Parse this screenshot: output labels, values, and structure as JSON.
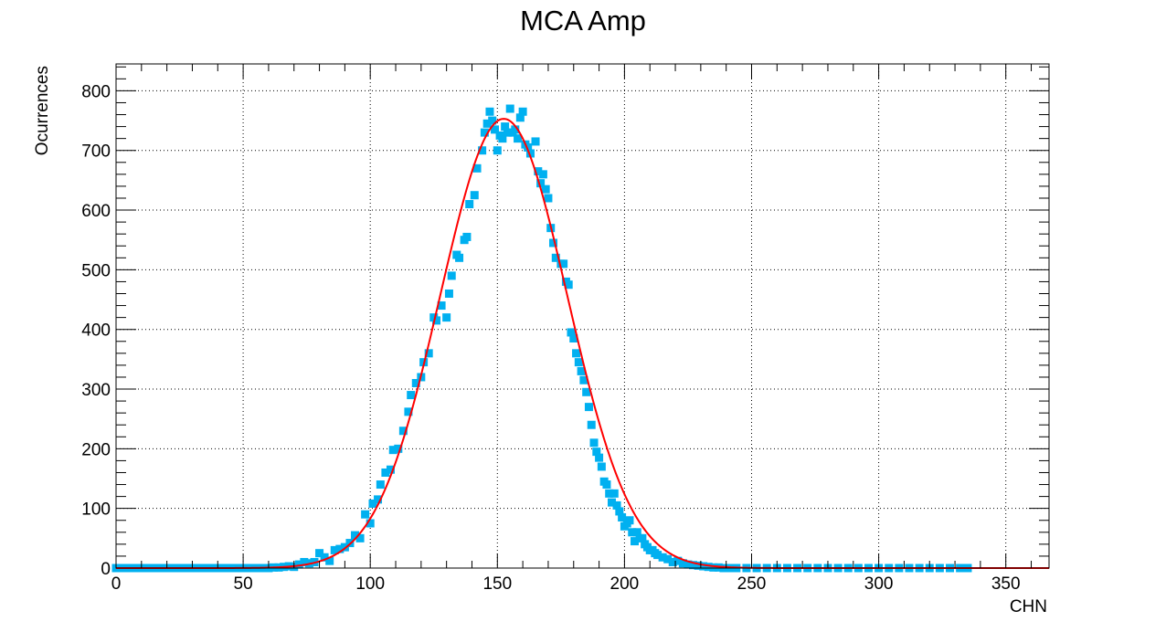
{
  "chart_data": {
    "type": "scatter",
    "title": "MCA Amp",
    "xlabel": "CHN",
    "ylabel": "Ocurrences",
    "xlim": [
      0,
      367
    ],
    "ylim": [
      0,
      845
    ],
    "x_ticks": [
      0,
      50,
      100,
      150,
      200,
      250,
      300,
      350
    ],
    "y_ticks": [
      0,
      100,
      200,
      300,
      400,
      500,
      600,
      700,
      800
    ],
    "x_tick_labels": [
      "0",
      "50",
      "100",
      "150",
      "200",
      "250",
      "300",
      "350"
    ],
    "y_tick_labels": [
      "0",
      "100",
      "200",
      "300",
      "400",
      "500",
      "600",
      "700",
      "800"
    ],
    "grid": true,
    "series": [
      {
        "marker": "square",
        "color": "#00b0f0",
        "points": [
          [
            0,
            0
          ],
          [
            2,
            0
          ],
          [
            4,
            0
          ],
          [
            6,
            0
          ],
          [
            8,
            0
          ],
          [
            10,
            0
          ],
          [
            12,
            0
          ],
          [
            14,
            0
          ],
          [
            16,
            0
          ],
          [
            18,
            0
          ],
          [
            20,
            0
          ],
          [
            22,
            0
          ],
          [
            24,
            0
          ],
          [
            26,
            0
          ],
          [
            28,
            0
          ],
          [
            30,
            0
          ],
          [
            32,
            0
          ],
          [
            34,
            0
          ],
          [
            36,
            0
          ],
          [
            38,
            0
          ],
          [
            40,
            0
          ],
          [
            42,
            0
          ],
          [
            44,
            0
          ],
          [
            46,
            0
          ],
          [
            48,
            0
          ],
          [
            50,
            0
          ],
          [
            52,
            0
          ],
          [
            54,
            0
          ],
          [
            56,
            0
          ],
          [
            58,
            0
          ],
          [
            60,
            0
          ],
          [
            62,
            1
          ],
          [
            64,
            1
          ],
          [
            66,
            2
          ],
          [
            68,
            3
          ],
          [
            70,
            2
          ],
          [
            72,
            6
          ],
          [
            74,
            10
          ],
          [
            76,
            8
          ],
          [
            78,
            10
          ],
          [
            80,
            25
          ],
          [
            82,
            18
          ],
          [
            84,
            12
          ],
          [
            86,
            30
          ],
          [
            88,
            32
          ],
          [
            90,
            35
          ],
          [
            92,
            42
          ],
          [
            94,
            55
          ],
          [
            96,
            50
          ],
          [
            98,
            90
          ],
          [
            100,
            75
          ],
          [
            101,
            108
          ],
          [
            103,
            115
          ],
          [
            104,
            140
          ],
          [
            106,
            160
          ],
          [
            108,
            165
          ],
          [
            109,
            198
          ],
          [
            111,
            200
          ],
          [
            113,
            230
          ],
          [
            115,
            262
          ],
          [
            116,
            290
          ],
          [
            118,
            310
          ],
          [
            120,
            320
          ],
          [
            121,
            345
          ],
          [
            123,
            360
          ],
          [
            125,
            420
          ],
          [
            126,
            415
          ],
          [
            128,
            440
          ],
          [
            130,
            420
          ],
          [
            131,
            460
          ],
          [
            132,
            490
          ],
          [
            134,
            525
          ],
          [
            135,
            520
          ],
          [
            137,
            550
          ],
          [
            138,
            555
          ],
          [
            139,
            610
          ],
          [
            141,
            625
          ],
          [
            142,
            670
          ],
          [
            144,
            700
          ],
          [
            145,
            730
          ],
          [
            146,
            745
          ],
          [
            147,
            765
          ],
          [
            148,
            750
          ],
          [
            149,
            735
          ],
          [
            150,
            700
          ],
          [
            151,
            725
          ],
          [
            152,
            720
          ],
          [
            153,
            740
          ],
          [
            154,
            730
          ],
          [
            155,
            770
          ],
          [
            156,
            730
          ],
          [
            157,
            735
          ],
          [
            158,
            720
          ],
          [
            159,
            755
          ],
          [
            160,
            765
          ],
          [
            161,
            710
          ],
          [
            162,
            705
          ],
          [
            163,
            695
          ],
          [
            165,
            715
          ],
          [
            166,
            665
          ],
          [
            167,
            645
          ],
          [
            168,
            660
          ],
          [
            169,
            635
          ],
          [
            170,
            620
          ],
          [
            171,
            570
          ],
          [
            172,
            545
          ],
          [
            173,
            520
          ],
          [
            175,
            510
          ],
          [
            176,
            510
          ],
          [
            177,
            480
          ],
          [
            178,
            475
          ],
          [
            179,
            395
          ],
          [
            180,
            385
          ],
          [
            181,
            360
          ],
          [
            182,
            345
          ],
          [
            183,
            330
          ],
          [
            184,
            315
          ],
          [
            185,
            295
          ],
          [
            186,
            270
          ],
          [
            187,
            240
          ],
          [
            188,
            210
          ],
          [
            189,
            195
          ],
          [
            190,
            185
          ],
          [
            191,
            170
          ],
          [
            192,
            145
          ],
          [
            193,
            140
          ],
          [
            194,
            125
          ],
          [
            195,
            110
          ],
          [
            196,
            125
          ],
          [
            197,
            105
          ],
          [
            198,
            95
          ],
          [
            199,
            85
          ],
          [
            200,
            70
          ],
          [
            201,
            75
          ],
          [
            202,
            80
          ],
          [
            203,
            60
          ],
          [
            204,
            45
          ],
          [
            205,
            60
          ],
          [
            206,
            50
          ],
          [
            207,
            50
          ],
          [
            208,
            40
          ],
          [
            209,
            35
          ],
          [
            210,
            30
          ],
          [
            211,
            30
          ],
          [
            212,
            25
          ],
          [
            213,
            22
          ],
          [
            215,
            18
          ],
          [
            217,
            15
          ],
          [
            219,
            10
          ],
          [
            221,
            12
          ],
          [
            223,
            8
          ],
          [
            225,
            6
          ],
          [
            227,
            5
          ],
          [
            229,
            4
          ],
          [
            231,
            3
          ],
          [
            233,
            2
          ],
          [
            235,
            1
          ],
          [
            237,
            1
          ],
          [
            239,
            0
          ],
          [
            241,
            0
          ],
          [
            244,
            0
          ],
          [
            248,
            0
          ],
          [
            252,
            0
          ],
          [
            256,
            0
          ],
          [
            260,
            0
          ],
          [
            264,
            0
          ],
          [
            268,
            0
          ],
          [
            272,
            0
          ],
          [
            276,
            0
          ],
          [
            280,
            0
          ],
          [
            284,
            0
          ],
          [
            288,
            0
          ],
          [
            292,
            0
          ],
          [
            296,
            0
          ],
          [
            300,
            0
          ],
          [
            304,
            0
          ],
          [
            308,
            0
          ],
          [
            312,
            0
          ],
          [
            316,
            0
          ],
          [
            320,
            0
          ],
          [
            324,
            0
          ],
          [
            328,
            0
          ],
          [
            332,
            0
          ],
          [
            335,
            0
          ]
        ]
      },
      {
        "type": "line",
        "color": "#ff0000",
        "fit": {
          "amplitude": 753,
          "mean": 152.5,
          "sigma": 25
        },
        "x_range": [
          0,
          367
        ]
      }
    ]
  }
}
